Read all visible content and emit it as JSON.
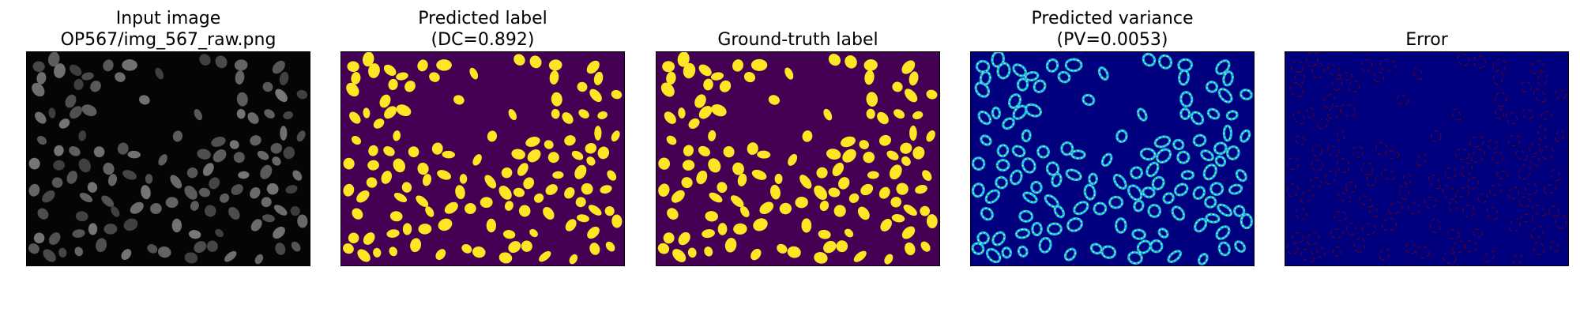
{
  "panels": [
    {
      "title_line1": "Input image",
      "title_line2": "OP567/img_567_raw.png",
      "kind": "raw"
    },
    {
      "title_line1": "Predicted label",
      "title_line2": "(DC=0.892)",
      "kind": "pred"
    },
    {
      "title_line1": "Ground-truth label",
      "title_line2": "",
      "kind": "gt"
    },
    {
      "title_line1": "Predicted variance",
      "title_line2": "(PV=0.0053)",
      "kind": "var"
    },
    {
      "title_line1": "Error",
      "title_line2": "",
      "kind": "err"
    }
  ],
  "colors": {
    "raw_background": "#050505",
    "raw_cell": "#5a5a5a",
    "label_background": "#440154",
    "label_cell": "#fde725",
    "variance_background": "#00007f",
    "error_background": "#00007f",
    "error_edge": "#7f0000"
  }
}
